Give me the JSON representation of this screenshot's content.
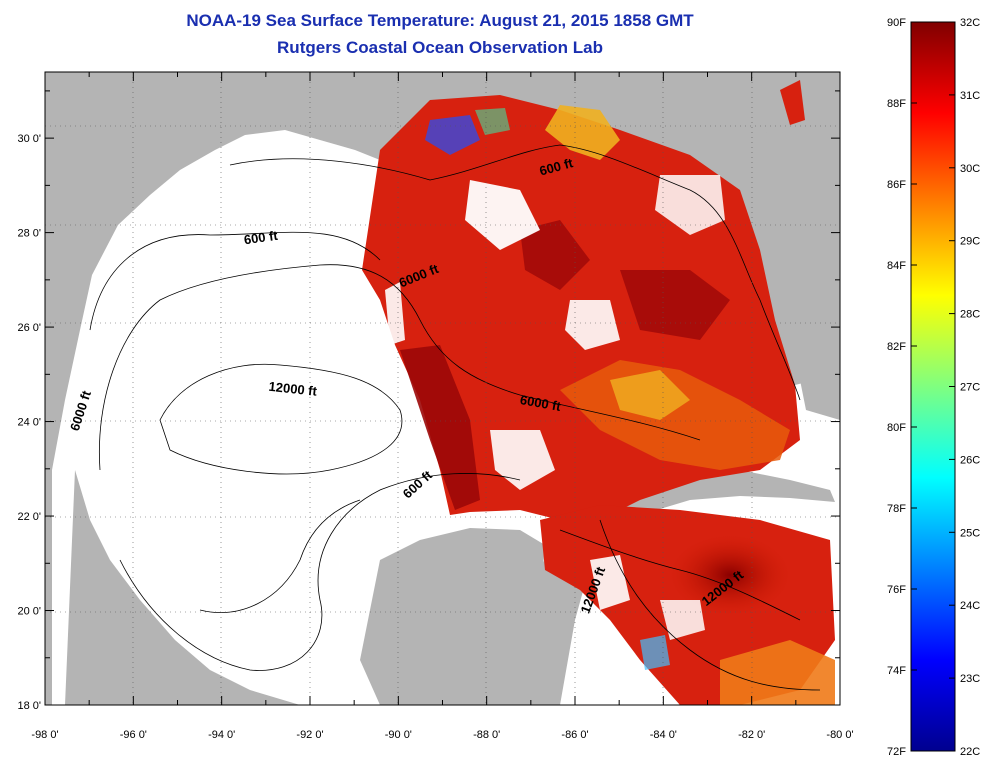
{
  "title": {
    "line1": "NOAA-19 Sea Surface Temperature:  August 21, 2015 1858 GMT",
    "line2": "Rutgers Coastal Ocean Observation Lab"
  },
  "map": {
    "lon_labels": [
      "-98 0'",
      "-96 0'",
      "-94 0'",
      "-92 0'",
      "-90 0'",
      "-88 0'",
      "-86 0'",
      "-84 0'",
      "-82 0'",
      "-80 0'"
    ],
    "lat_labels": [
      "30 0'",
      "28 0'",
      "26 0'",
      "24 0'",
      "22 0'",
      "20 0'",
      "18 0'"
    ],
    "lon_range": [
      -98,
      -80
    ],
    "lat_range": [
      18,
      31.4
    ],
    "contour_labels": [
      {
        "text": "600 ft",
        "lon": -86.4,
        "lat": 29.3,
        "rot": -15
      },
      {
        "text": "600 ft",
        "lon": -93.1,
        "lat": 27.8,
        "rot": -8
      },
      {
        "text": "6000 ft",
        "lon": -89.5,
        "lat": 27.0,
        "rot": -22
      },
      {
        "text": "12000 ft",
        "lon": -92.4,
        "lat": 24.6,
        "rot": 6
      },
      {
        "text": "6000 ft",
        "lon": -86.8,
        "lat": 24.3,
        "rot": 10
      },
      {
        "text": "6000 ft",
        "lon": -97.1,
        "lat": 24.2,
        "rot": -72
      },
      {
        "text": "600 ft",
        "lon": -89.5,
        "lat": 22.6,
        "rot": -42
      },
      {
        "text": "12000 ft",
        "lon": -85.5,
        "lat": 20.4,
        "rot": -70
      },
      {
        "text": "12000 ft",
        "lon": -82.6,
        "lat": 20.4,
        "rot": -38
      }
    ],
    "colors": {
      "land": "#b4b4b4",
      "ocean": "#ffffff",
      "contour": "#000000"
    }
  },
  "colorbar": {
    "f_labels": [
      "90F",
      "88F",
      "86F",
      "84F",
      "82F",
      "80F",
      "78F",
      "76F",
      "74F",
      "72F"
    ],
    "c_labels": [
      "32C",
      "31C",
      "30C",
      "29C",
      "28C",
      "27C",
      "26C",
      "25C",
      "24C",
      "23C",
      "22C"
    ],
    "range_c": [
      22,
      32
    ],
    "range_f": [
      72,
      90
    ],
    "colormap": "jet"
  }
}
